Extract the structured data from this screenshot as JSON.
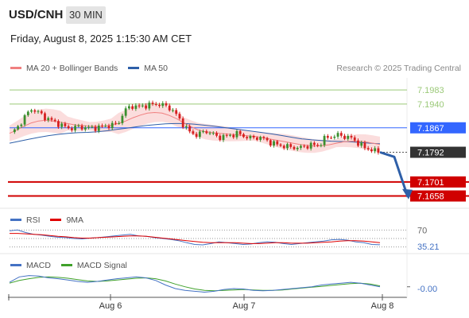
{
  "header": {
    "symbol": "USD/CNH",
    "timeframe": "30 MIN",
    "datetime": "Friday, August 8, 2025 1:15:30 AM CET"
  },
  "legend": {
    "main": [
      {
        "label": "MA 20 + Bollinger Bands",
        "color": "#f08080"
      },
      {
        "label": "MA 50",
        "color": "#2e5fa8"
      }
    ],
    "rsi": [
      {
        "label": "RSI",
        "color": "#4472c4"
      },
      {
        "label": "9MA",
        "color": "#e00000"
      }
    ],
    "macd": [
      {
        "label": "MACD",
        "color": "#4472c4"
      },
      {
        "label": "MACD Signal",
        "color": "#3fa12a"
      }
    ]
  },
  "credit": "Research © 2025 Trading Central",
  "colors": {
    "up": "#3a8f2e",
    "down": "#d62020",
    "bb_fill": "#fad2d2",
    "ma20": "#f08080",
    "ma50": "#2e5fa8",
    "pivot": "#3366ff",
    "support": "#d00000",
    "resistance": "#9bc978",
    "forecast": "#2e5fa8",
    "last": "#333333"
  },
  "chart_data": [
    {
      "type": "line",
      "title": "USD/CNH 30 MIN",
      "ylim": [
        7.163,
        7.202
      ],
      "x_ticks": [
        "Aug 6",
        "Aug 7",
        "Aug 8"
      ],
      "levels": [
        {
          "label": "7.1983",
          "value": 7.1983,
          "kind": "resistance"
        },
        {
          "label": "7.1940",
          "value": 7.194,
          "kind": "resistance"
        },
        {
          "label": "7.1867",
          "value": 7.1867,
          "kind": "pivot"
        },
        {
          "label": "7.1792",
          "value": 7.1792,
          "kind": "last"
        },
        {
          "label": "7.1701",
          "value": 7.1701,
          "kind": "support"
        },
        {
          "label": "7.1658",
          "value": 7.1658,
          "kind": "support"
        }
      ],
      "close_path": [
        7.185,
        7.187,
        7.19,
        7.1925,
        7.1915,
        7.19,
        7.189,
        7.188,
        7.187,
        7.1865,
        7.187,
        7.1868,
        7.1866,
        7.1868,
        7.1872,
        7.1875,
        7.188,
        7.192,
        7.1935,
        7.193,
        7.1935,
        7.1938,
        7.194,
        7.1935,
        7.1925,
        7.19,
        7.187,
        7.185,
        7.1845,
        7.1858,
        7.185,
        7.1838,
        7.184,
        7.1845,
        7.185,
        7.184,
        7.1835,
        7.1838,
        7.1832,
        7.182,
        7.1815,
        7.181,
        7.1808,
        7.1805,
        7.181,
        7.1815,
        7.1812,
        7.1835,
        7.184,
        7.1845,
        7.184,
        7.1835,
        7.182,
        7.1805,
        7.18,
        7.1792
      ],
      "ma20": [
        7.185,
        7.186,
        7.1872,
        7.1882,
        7.1888,
        7.189,
        7.1888,
        7.1884,
        7.188,
        7.1876,
        7.1874,
        7.1872,
        7.1871,
        7.1872,
        7.1875,
        7.188,
        7.1888,
        7.1898,
        7.1906,
        7.1912,
        7.1914,
        7.1912,
        7.1905,
        7.1895,
        7.1882,
        7.187,
        7.186,
        7.1855,
        7.1852,
        7.185,
        7.1848,
        7.1846,
        7.1844,
        7.1842,
        7.184,
        7.1836,
        7.1832,
        7.1828,
        7.1824,
        7.182,
        7.1816,
        7.1813,
        7.1811,
        7.1812,
        7.1815,
        7.182,
        7.1824,
        7.1826,
        7.1826,
        7.1824,
        7.182,
        7.1816
      ],
      "ma50": [
        7.182,
        7.1826,
        7.1832,
        7.1838,
        7.1843,
        7.1847,
        7.185,
        7.1852,
        7.1853,
        7.1855,
        7.1858,
        7.1862,
        7.1866,
        7.187,
        7.1874,
        7.1877,
        7.1879,
        7.188,
        7.188,
        7.1878,
        7.1875,
        7.1872,
        7.1868,
        7.1864,
        7.186,
        7.1856,
        7.1852,
        7.1848,
        7.1843,
        7.1838,
        7.1833,
        7.183,
        7.1828,
        7.1826,
        7.1825,
        7.1824,
        7.1822,
        7.182,
        7.1818
      ],
      "forecast": [
        7.1792,
        7.1778,
        7.1655
      ]
    },
    {
      "type": "line",
      "title": "RSI",
      "ylim": [
        20,
        80
      ],
      "ref_levels": [
        70,
        50,
        30
      ],
      "labels": [
        "70",
        "35.21"
      ],
      "rsi": [
        68,
        70,
        64,
        60,
        58,
        55,
        53,
        52,
        50,
        49,
        51,
        52,
        54,
        56,
        58,
        60,
        56,
        55,
        52,
        50,
        48,
        45,
        40,
        36,
        35,
        38,
        42,
        40,
        38,
        36,
        37,
        40,
        42,
        41,
        38,
        36,
        38,
        40,
        42,
        44,
        47,
        48,
        46,
        42,
        40,
        36,
        35.21
      ],
      "ma9": [
        62,
        62,
        61,
        60,
        59,
        57,
        55,
        54,
        52,
        51,
        51,
        52,
        53,
        54,
        55,
        56,
        56,
        55,
        53,
        51,
        49,
        47,
        45,
        43,
        41,
        40,
        40,
        40,
        40,
        39,
        38,
        38,
        39,
        40,
        40,
        39,
        39,
        39,
        40,
        41,
        42,
        44,
        45,
        45,
        44,
        42,
        40
      ]
    },
    {
      "type": "line",
      "title": "MACD",
      "ylim": [
        -0.002,
        0.0035
      ],
      "labels": [
        "-0.00"
      ],
      "macd": [
        0.001,
        0.0022,
        0.0025,
        0.0024,
        0.002,
        0.0018,
        0.0015,
        0.0012,
        0.001,
        0.0012,
        0.0015,
        0.0018,
        0.002,
        0.0022,
        0.002,
        0.0014,
        0.0004,
        -0.0004,
        -0.0008,
        -0.001,
        -0.0012,
        -0.001,
        -0.0006,
        -0.0004,
        -0.0005,
        -0.0008,
        -0.0009,
        -0.0008,
        -0.0006,
        -0.0004,
        -0.0002,
        0.0,
        0.0004,
        0.0006,
        0.0008,
        0.001,
        0.0008,
        0.0004,
        0.0
      ],
      "signal": [
        0.0008,
        0.0014,
        0.0018,
        0.0021,
        0.0022,
        0.0021,
        0.0019,
        0.0016,
        0.0013,
        0.0012,
        0.0013,
        0.0015,
        0.0017,
        0.0019,
        0.002,
        0.0018,
        0.0013,
        0.0006,
        0.0,
        -0.0005,
        -0.0008,
        -0.0009,
        -0.0008,
        -0.0007,
        -0.0006,
        -0.0007,
        -0.0008,
        -0.0008,
        -0.0007,
        -0.0005,
        -0.0003,
        -0.0001,
        0.0001,
        0.0003,
        0.0005,
        0.0007,
        0.0008,
        0.0006,
        0.0002
      ]
    }
  ]
}
